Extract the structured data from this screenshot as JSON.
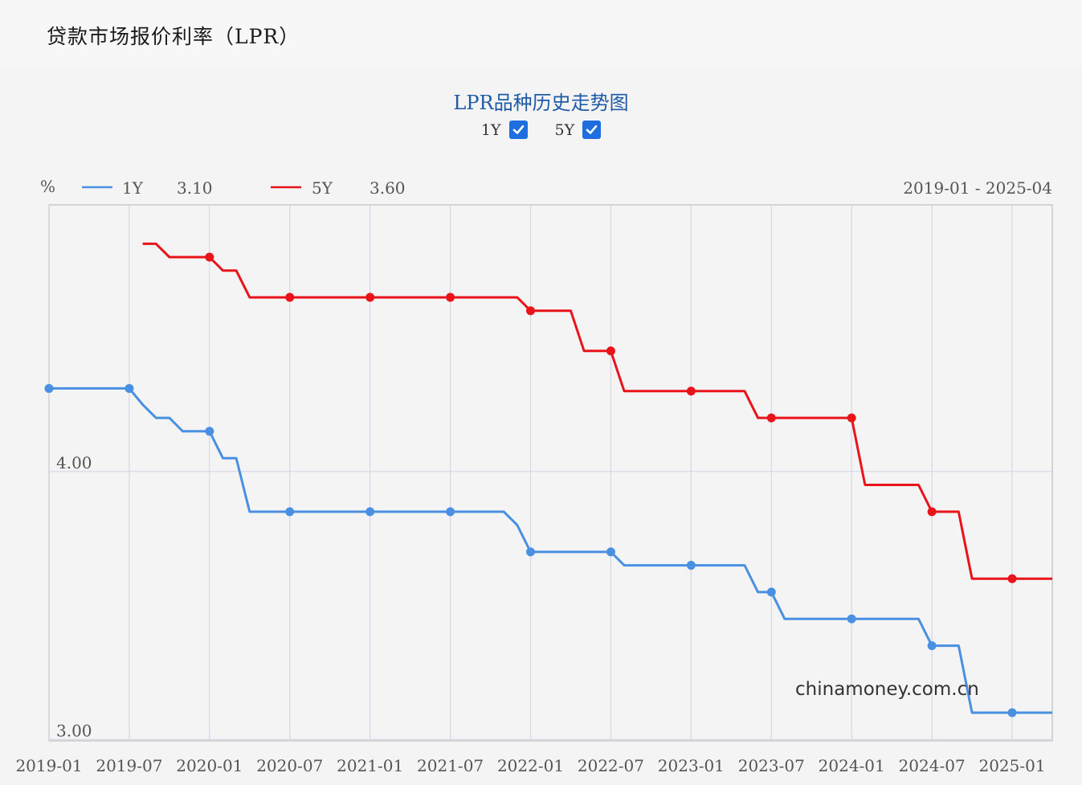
{
  "page": {
    "title": "贷款市场报价利率（LPR）"
  },
  "chart_header": {
    "title": "LPR品种历史走势图",
    "toggles": [
      {
        "label": "1Y",
        "checked": true
      },
      {
        "label": "5Y",
        "checked": true
      }
    ]
  },
  "legend": {
    "unit": "%",
    "items": [
      {
        "label": "1Y",
        "value": "3.10",
        "color": "#4a90e2"
      },
      {
        "label": "5Y",
        "value": "3.60",
        "color": "#e8141a"
      }
    ],
    "range": "2019-01 - 2025-04"
  },
  "watermark": "chinamoney.com.cn",
  "chart_data": {
    "type": "line",
    "x_ticks": [
      "2019-01",
      "2019-07",
      "2020-01",
      "2020-07",
      "2021-01",
      "2021-07",
      "2022-01",
      "2022-07",
      "2023-01",
      "2023-07",
      "2024-01",
      "2024-07",
      "2025-01"
    ],
    "y_ticks": [
      {
        "value": 4.0,
        "label": "4.00"
      },
      {
        "value": 3.0,
        "label": "3.00"
      }
    ],
    "xlim": [
      "2019-01",
      "2025-04"
    ],
    "ylim": [
      2.995,
      4.995
    ],
    "grid": true,
    "series": [
      {
        "name": "1Y",
        "color": "#4a90e2",
        "points": [
          [
            "2019-01",
            4.31
          ],
          [
            "2019-02",
            4.31
          ],
          [
            "2019-03",
            4.31
          ],
          [
            "2019-04",
            4.31
          ],
          [
            "2019-05",
            4.31
          ],
          [
            "2019-06",
            4.31
          ],
          [
            "2019-07",
            4.31
          ],
          [
            "2019-08",
            4.25
          ],
          [
            "2019-09",
            4.2
          ],
          [
            "2019-10",
            4.2
          ],
          [
            "2019-11",
            4.15
          ],
          [
            "2019-12",
            4.15
          ],
          [
            "2020-01",
            4.15
          ],
          [
            "2020-02",
            4.05
          ],
          [
            "2020-03",
            4.05
          ],
          [
            "2020-04",
            3.85
          ],
          [
            "2020-05",
            3.85
          ],
          [
            "2020-06",
            3.85
          ],
          [
            "2020-07",
            3.85
          ],
          [
            "2020-08",
            3.85
          ],
          [
            "2020-09",
            3.85
          ],
          [
            "2020-10",
            3.85
          ],
          [
            "2020-11",
            3.85
          ],
          [
            "2020-12",
            3.85
          ],
          [
            "2021-01",
            3.85
          ],
          [
            "2021-02",
            3.85
          ],
          [
            "2021-03",
            3.85
          ],
          [
            "2021-04",
            3.85
          ],
          [
            "2021-05",
            3.85
          ],
          [
            "2021-06",
            3.85
          ],
          [
            "2021-07",
            3.85
          ],
          [
            "2021-08",
            3.85
          ],
          [
            "2021-09",
            3.85
          ],
          [
            "2021-10",
            3.85
          ],
          [
            "2021-11",
            3.85
          ],
          [
            "2021-12",
            3.8
          ],
          [
            "2022-01",
            3.7
          ],
          [
            "2022-02",
            3.7
          ],
          [
            "2022-03",
            3.7
          ],
          [
            "2022-04",
            3.7
          ],
          [
            "2022-05",
            3.7
          ],
          [
            "2022-06",
            3.7
          ],
          [
            "2022-07",
            3.7
          ],
          [
            "2022-08",
            3.65
          ],
          [
            "2022-09",
            3.65
          ],
          [
            "2022-10",
            3.65
          ],
          [
            "2022-11",
            3.65
          ],
          [
            "2022-12",
            3.65
          ],
          [
            "2023-01",
            3.65
          ],
          [
            "2023-02",
            3.65
          ],
          [
            "2023-03",
            3.65
          ],
          [
            "2023-04",
            3.65
          ],
          [
            "2023-05",
            3.65
          ],
          [
            "2023-06",
            3.55
          ],
          [
            "2023-07",
            3.55
          ],
          [
            "2023-08",
            3.45
          ],
          [
            "2023-09",
            3.45
          ],
          [
            "2023-10",
            3.45
          ],
          [
            "2023-11",
            3.45
          ],
          [
            "2023-12",
            3.45
          ],
          [
            "2024-01",
            3.45
          ],
          [
            "2024-02",
            3.45
          ],
          [
            "2024-03",
            3.45
          ],
          [
            "2024-04",
            3.45
          ],
          [
            "2024-05",
            3.45
          ],
          [
            "2024-06",
            3.45
          ],
          [
            "2024-07",
            3.35
          ],
          [
            "2024-08",
            3.35
          ],
          [
            "2024-09",
            3.35
          ],
          [
            "2024-10",
            3.1
          ],
          [
            "2024-11",
            3.1
          ],
          [
            "2024-12",
            3.1
          ],
          [
            "2025-01",
            3.1
          ],
          [
            "2025-02",
            3.1
          ],
          [
            "2025-03",
            3.1
          ],
          [
            "2025-04",
            3.1
          ]
        ],
        "markers": [
          "2019-01",
          "2019-07",
          "2020-01",
          "2020-07",
          "2021-01",
          "2021-07",
          "2022-01",
          "2022-07",
          "2023-01",
          "2023-07",
          "2024-01",
          "2024-07",
          "2025-01"
        ]
      },
      {
        "name": "5Y",
        "color": "#e8141a",
        "points": [
          [
            "2019-08",
            4.85
          ],
          [
            "2019-09",
            4.85
          ],
          [
            "2019-10",
            4.8
          ],
          [
            "2019-11",
            4.8
          ],
          [
            "2019-12",
            4.8
          ],
          [
            "2020-01",
            4.8
          ],
          [
            "2020-02",
            4.75
          ],
          [
            "2020-03",
            4.75
          ],
          [
            "2020-04",
            4.65
          ],
          [
            "2020-05",
            4.65
          ],
          [
            "2020-06",
            4.65
          ],
          [
            "2020-07",
            4.65
          ],
          [
            "2020-08",
            4.65
          ],
          [
            "2020-09",
            4.65
          ],
          [
            "2020-10",
            4.65
          ],
          [
            "2020-11",
            4.65
          ],
          [
            "2020-12",
            4.65
          ],
          [
            "2021-01",
            4.65
          ],
          [
            "2021-02",
            4.65
          ],
          [
            "2021-03",
            4.65
          ],
          [
            "2021-04",
            4.65
          ],
          [
            "2021-05",
            4.65
          ],
          [
            "2021-06",
            4.65
          ],
          [
            "2021-07",
            4.65
          ],
          [
            "2021-08",
            4.65
          ],
          [
            "2021-09",
            4.65
          ],
          [
            "2021-10",
            4.65
          ],
          [
            "2021-11",
            4.65
          ],
          [
            "2021-12",
            4.65
          ],
          [
            "2022-01",
            4.6
          ],
          [
            "2022-02",
            4.6
          ],
          [
            "2022-03",
            4.6
          ],
          [
            "2022-04",
            4.6
          ],
          [
            "2022-05",
            4.45
          ],
          [
            "2022-06",
            4.45
          ],
          [
            "2022-07",
            4.45
          ],
          [
            "2022-08",
            4.3
          ],
          [
            "2022-09",
            4.3
          ],
          [
            "2022-10",
            4.3
          ],
          [
            "2022-11",
            4.3
          ],
          [
            "2022-12",
            4.3
          ],
          [
            "2023-01",
            4.3
          ],
          [
            "2023-02",
            4.3
          ],
          [
            "2023-03",
            4.3
          ],
          [
            "2023-04",
            4.3
          ],
          [
            "2023-05",
            4.3
          ],
          [
            "2023-06",
            4.2
          ],
          [
            "2023-07",
            4.2
          ],
          [
            "2023-08",
            4.2
          ],
          [
            "2023-09",
            4.2
          ],
          [
            "2023-10",
            4.2
          ],
          [
            "2023-11",
            4.2
          ],
          [
            "2023-12",
            4.2
          ],
          [
            "2024-01",
            4.2
          ],
          [
            "2024-02",
            3.95
          ],
          [
            "2024-03",
            3.95
          ],
          [
            "2024-04",
            3.95
          ],
          [
            "2024-05",
            3.95
          ],
          [
            "2024-06",
            3.95
          ],
          [
            "2024-07",
            3.85
          ],
          [
            "2024-08",
            3.85
          ],
          [
            "2024-09",
            3.85
          ],
          [
            "2024-10",
            3.6
          ],
          [
            "2024-11",
            3.6
          ],
          [
            "2024-12",
            3.6
          ],
          [
            "2025-01",
            3.6
          ],
          [
            "2025-02",
            3.6
          ],
          [
            "2025-03",
            3.6
          ],
          [
            "2025-04",
            3.6
          ]
        ],
        "markers": [
          "2020-01",
          "2020-07",
          "2021-01",
          "2021-07",
          "2022-01",
          "2022-07",
          "2023-01",
          "2023-07",
          "2024-01",
          "2024-07",
          "2025-01"
        ]
      }
    ]
  }
}
